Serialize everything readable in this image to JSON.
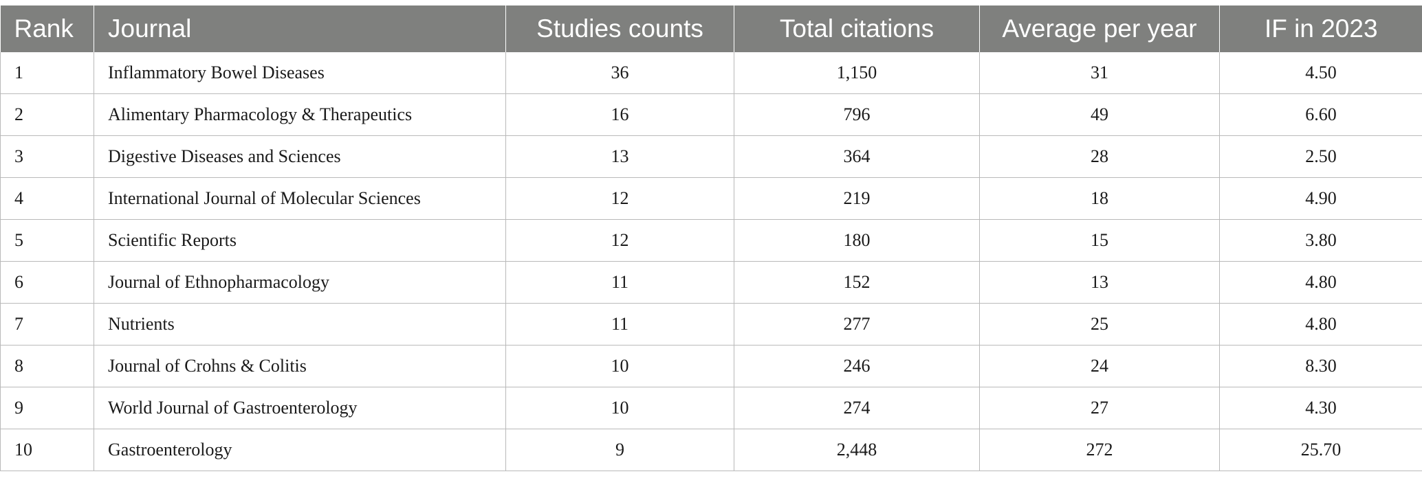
{
  "table": {
    "headers": [
      "Rank",
      "Journal",
      "Studies counts",
      "Total citations",
      "Average per year",
      "IF in 2023"
    ],
    "rows": [
      [
        "1",
        "Inflammatory Bowel Diseases",
        "36",
        "1,150",
        "31",
        "4.50"
      ],
      [
        "2",
        "Alimentary Pharmacology & Therapeutics",
        "16",
        "796",
        "49",
        "6.60"
      ],
      [
        "3",
        "Digestive Diseases and Sciences",
        "13",
        "364",
        "28",
        "2.50"
      ],
      [
        "4",
        "International Journal of Molecular Sciences",
        "12",
        "219",
        "18",
        "4.90"
      ],
      [
        "5",
        "Scientific Reports",
        "12",
        "180",
        "15",
        "3.80"
      ],
      [
        "6",
        "Journal of Ethnopharmacology",
        "11",
        "152",
        "13",
        "4.80"
      ],
      [
        "7",
        "Nutrients",
        "11",
        "277",
        "25",
        "4.80"
      ],
      [
        "8",
        "Journal of Crohns & Colitis",
        "10",
        "246",
        "24",
        "8.30"
      ],
      [
        "9",
        "World Journal of Gastroenterology",
        "10",
        "274",
        "27",
        "4.30"
      ],
      [
        "10",
        "Gastroenterology",
        "9",
        "2,448",
        "272",
        "25.70"
      ]
    ]
  },
  "colors": {
    "header_bg": "#7f807e",
    "header_text": "#ffffff",
    "grid_line": "#b9b9b9"
  }
}
